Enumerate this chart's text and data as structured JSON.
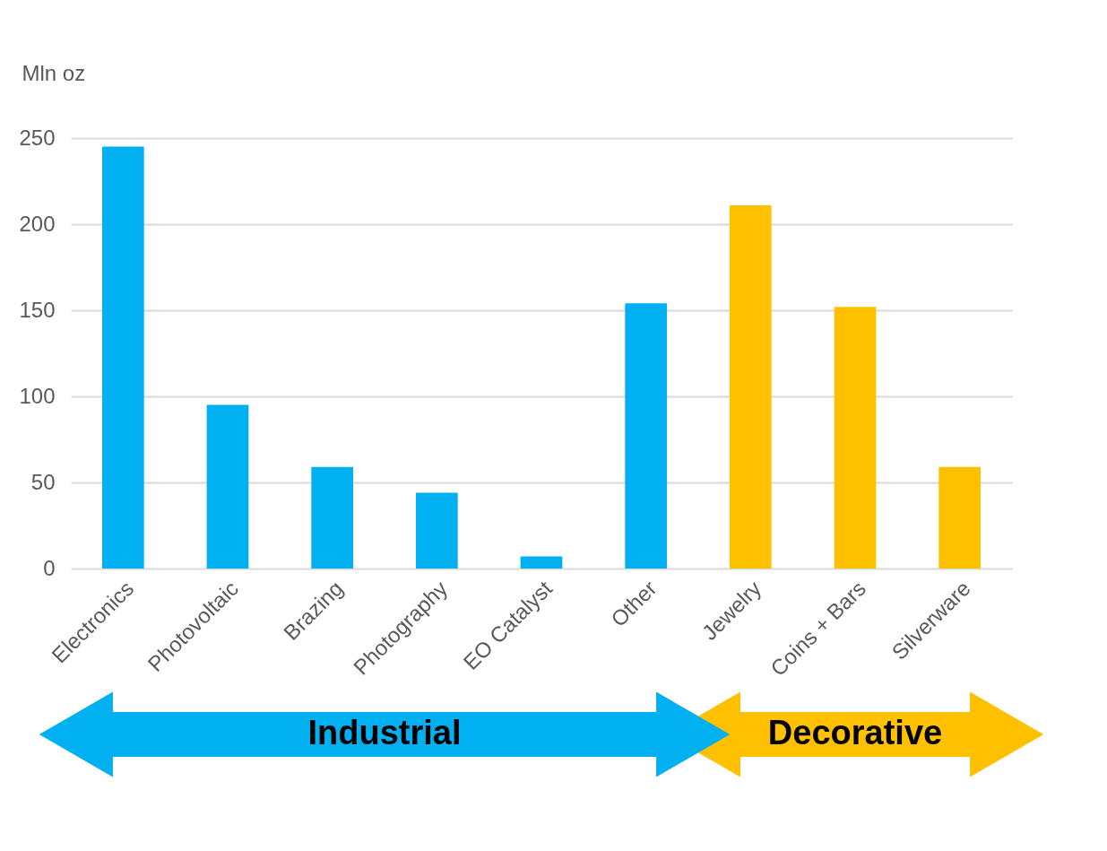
{
  "chart_data": {
    "type": "bar",
    "ylabel": "Mln oz",
    "categories": [
      "Electronics",
      "Photovoltaic",
      "Brazing",
      "Photography",
      "EO Catalyst",
      "Other",
      "Jewelry",
      "Coins + Bars",
      "Silverware"
    ],
    "values": [
      245,
      95,
      59,
      44,
      7,
      154,
      211,
      152,
      59
    ],
    "colors": [
      "#00b0f0",
      "#00b0f0",
      "#00b0f0",
      "#00b0f0",
      "#00b0f0",
      "#00b0f0",
      "#ffc000",
      "#ffc000",
      "#ffc000"
    ],
    "ylim": [
      0,
      250
    ],
    "yticks": [
      0,
      50,
      100,
      150,
      200,
      250
    ],
    "grid": "y",
    "annotations": [
      "Industrial",
      "Decorative"
    ]
  }
}
